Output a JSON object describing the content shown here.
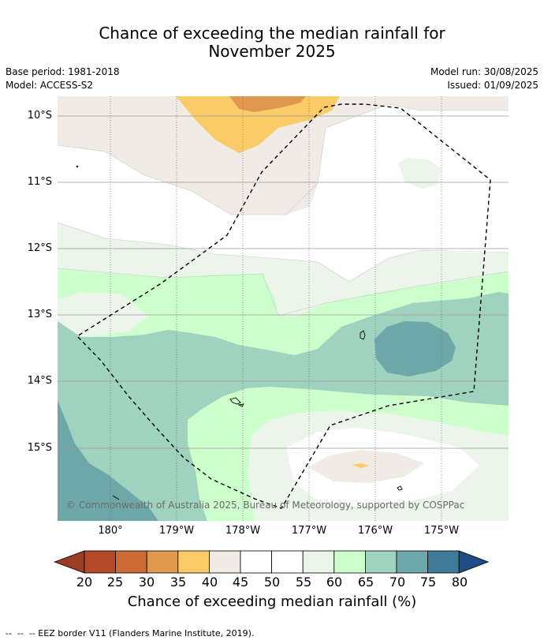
{
  "title_line1": "Chance of exceeding the median rainfall for",
  "title_line2": "November 2025",
  "base_period": "Base period: 1981-2018",
  "model": "Model: ACCESS-S2",
  "model_run": "Model run: 30/08/2025",
  "issued": "Issued: 01/09/2025",
  "map": {
    "lat_labels": [
      "10°S",
      "11°S",
      "12°S",
      "13°S",
      "14°S",
      "15°S"
    ],
    "lon_labels": [
      "180°",
      "179°W",
      "178°W",
      "177°W",
      "176°W",
      "175°W"
    ],
    "copyright": "© Commonwealth of Australia 2025, Bureau of Meteorology, supported by COSPPac",
    "eez_border_style": "dashed"
  },
  "colorbar": {
    "ticks": [
      "20",
      "25",
      "30",
      "35",
      "40",
      "45",
      "50",
      "55",
      "60",
      "65",
      "70",
      "75",
      "80"
    ],
    "under_color": "#9b3c25",
    "colors": [
      "#b44a2a",
      "#cc6a35",
      "#e0974e",
      "#fbcb67",
      "#f0ebe5",
      "#ffffff",
      "#ffffff",
      "#ebf5ea",
      "#ccffcc",
      "#9fd3bf",
      "#6ea7a8",
      "#3f7b99"
    ],
    "over_color": "#1f4e85",
    "label": "Chance of exceeding median rainfall (%)"
  },
  "footnote": "--  --  -- EEZ border V11 (Flanders Marine Institute, 2019)."
}
